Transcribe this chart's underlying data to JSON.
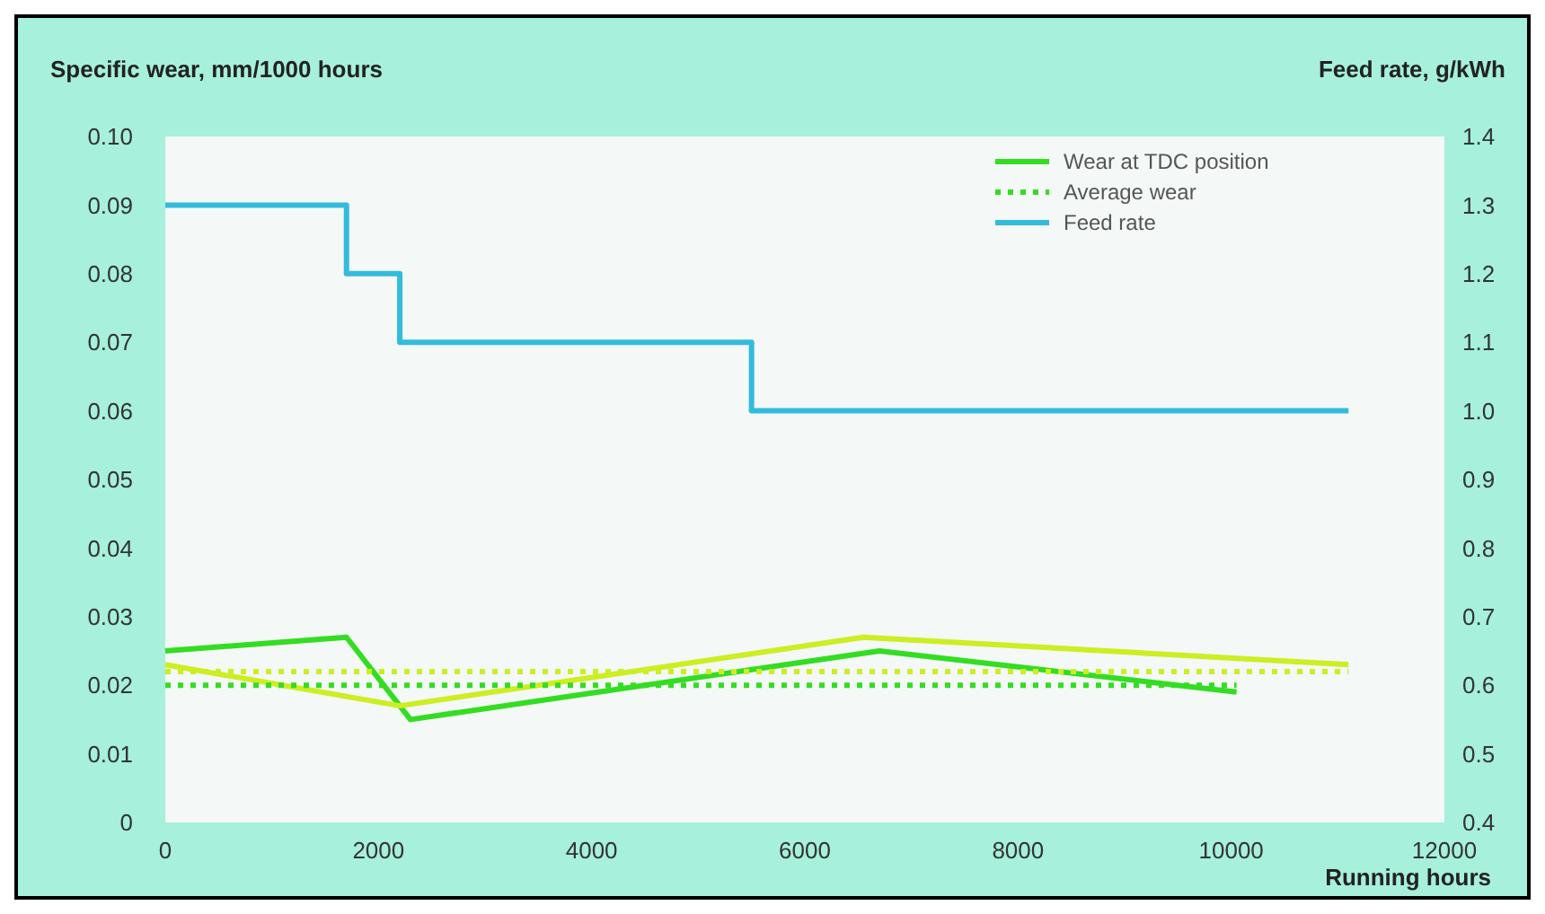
{
  "chart_data": {
    "type": "line",
    "xlabel": "Running hours",
    "ylabel": "Specific wear, mm/1000 hours",
    "y2label": "Feed rate, g/kWh",
    "xlim": [
      0,
      12000
    ],
    "xticks": [
      0,
      2000,
      4000,
      6000,
      8000,
      10000,
      12000
    ],
    "ylim": [
      0,
      0.1
    ],
    "yticks": [
      0,
      0.01,
      0.02,
      0.03,
      0.04,
      0.05,
      0.06,
      0.07,
      0.08,
      0.09,
      {
        "value": 0.1,
        "label": "0.10"
      }
    ],
    "y2lim": [
      0.4,
      1.4
    ],
    "y2ticks": [
      0.4,
      0.5,
      0.6,
      0.7,
      0.8,
      0.9,
      {
        "value": 1.0,
        "label": "1.0"
      },
      1.1,
      1.2,
      1.3,
      1.4
    ],
    "legend": "top right",
    "grid": false,
    "series": [
      {
        "name": "Wear at TDC position",
        "color": "#33dd22",
        "x": [
          0,
          1700,
          2300,
          6700,
          10050
        ],
        "values": [
          0.025,
          0.027,
          0.015,
          0.025,
          0.019
        ]
      },
      {
        "color": "#ccee22",
        "x": [
          0,
          2200,
          6550,
          11100
        ],
        "values": [
          0.023,
          0.017,
          0.027,
          0.023
        ]
      },
      {
        "name": "Average wear",
        "color": "#33dd22",
        "line_style": "dotted",
        "x": [
          0,
          10050
        ],
        "values": [
          0.02,
          0.02
        ]
      },
      {
        "color": "#ccee22",
        "line_style": "dotted",
        "x": [
          0,
          11100
        ],
        "values": [
          0.022,
          0.022
        ]
      },
      {
        "name": "Feed rate",
        "type": "step",
        "axis": "y2",
        "color": "#33bbdd",
        "x": [
          0,
          1700,
          2200,
          5500,
          11100
        ],
        "values": [
          1.3,
          1.2,
          1.1,
          1.0,
          1.0
        ]
      }
    ]
  }
}
